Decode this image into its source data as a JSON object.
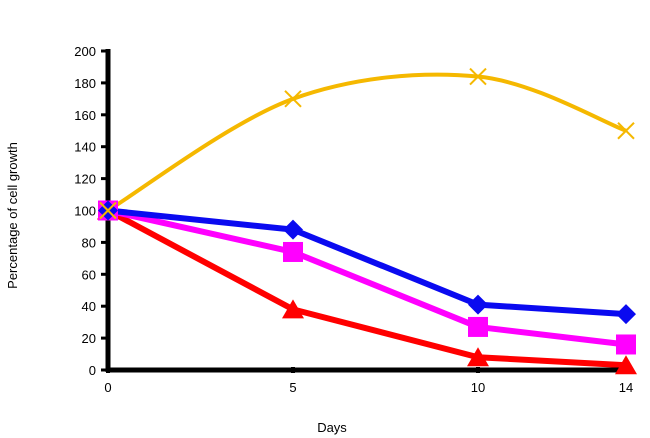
{
  "chart_data": {
    "type": "line",
    "title": "",
    "xlabel": "Days",
    "ylabel": "Percentage of cell growth",
    "x": [
      0,
      5,
      10,
      14
    ],
    "xlim": [
      0,
      14
    ],
    "ylim": [
      0,
      200
    ],
    "yticks": [
      0,
      20,
      40,
      60,
      80,
      100,
      120,
      140,
      160,
      180,
      200
    ],
    "grid": false,
    "legend": "none",
    "series": [
      {
        "values": [
          100,
          170,
          184,
          150
        ],
        "color": "#F5B800",
        "marker": "x",
        "smooth": true
      },
      {
        "values": [
          100,
          88,
          41,
          35
        ],
        "color": "#0A0AF0",
        "marker": "diamond",
        "smooth": false
      },
      {
        "values": [
          100,
          74,
          27,
          16
        ],
        "color": "#FF00FF",
        "marker": "square",
        "smooth": false
      },
      {
        "values": [
          100,
          38,
          8,
          3
        ],
        "color": "#FF0000",
        "marker": "triangle",
        "smooth": false
      }
    ]
  }
}
